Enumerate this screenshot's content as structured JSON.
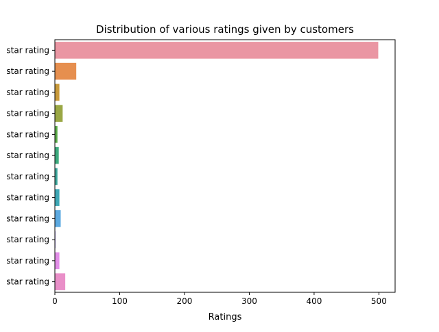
{
  "chart_data": {
    "type": "bar",
    "orientation": "horizontal",
    "title": "Distribution of various ratings given by customers",
    "xlabel": "Ratings",
    "ylabel": "",
    "xlim": [
      0,
      525
    ],
    "xticks": [
      0,
      100,
      200,
      300,
      400,
      500
    ],
    "grid": false,
    "legend": "none",
    "categories": [
      "star rating",
      "star rating",
      "star rating",
      "star rating",
      "star rating",
      "star rating",
      "star rating",
      "star rating",
      "star rating",
      "star rating",
      "star rating",
      "star rating"
    ],
    "values": [
      499,
      33,
      7,
      12,
      4,
      6,
      4,
      7,
      9,
      1,
      7,
      16
    ],
    "colors": [
      "#ea96a3",
      "#e68f4f",
      "#c89a3b",
      "#9aa744",
      "#5cac4a",
      "#3daa7e",
      "#3ea79c",
      "#3fa8b6",
      "#5ca9e0",
      "#a99ae7",
      "#e28ee8",
      "#e98fc8"
    ]
  }
}
